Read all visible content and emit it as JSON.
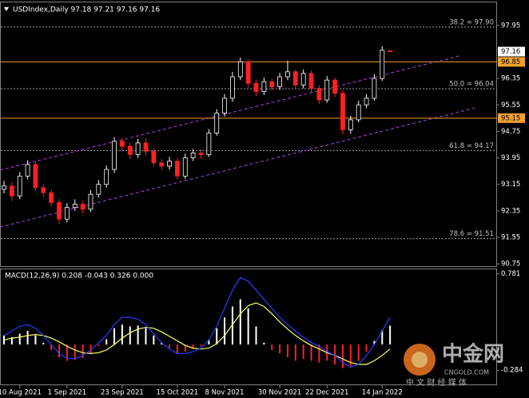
{
  "chart_data": [
    {
      "type": "candlestick",
      "title": "USDIndex,Daily 97.18 97.21 97.16 97.16",
      "categories": [
        null,
        null,
        "10 Aug 2021",
        null,
        null,
        null,
        null,
        null,
        "1 Sep 2021",
        null,
        null,
        null,
        null,
        null,
        null,
        "23 Sep 2021",
        null,
        null,
        null,
        null,
        null,
        null,
        "15 Oct 2021",
        null,
        null,
        null,
        null,
        null,
        "8 Nov 2021",
        null,
        null,
        null,
        null,
        null,
        null,
        "30 Nov 2021",
        null,
        null,
        null,
        null,
        null,
        "22 Dec 2021",
        null,
        null,
        null,
        null,
        null,
        null,
        "14 Jan 2022",
        null
      ],
      "open": [
        93.0,
        93.1,
        92.8,
        93.4,
        93.75,
        93.05,
        92.9,
        92.6,
        92.1,
        92.45,
        92.55,
        92.4,
        92.85,
        93.15,
        93.6,
        94.45,
        94.3,
        94.05,
        94.4,
        94.15,
        93.8,
        93.7,
        93.85,
        93.4,
        93.95,
        94.1,
        94.05,
        94.7,
        95.3,
        95.75,
        96.4,
        96.85,
        96.2,
        95.95,
        96.25,
        96.1,
        96.4,
        96.55,
        96.15,
        96.5,
        96.05,
        95.7,
        96.3,
        95.9,
        94.8,
        95.1,
        95.55,
        95.75,
        96.35,
        97.18
      ],
      "high": [
        93.25,
        93.22,
        93.52,
        93.88,
        93.82,
        93.15,
        93.0,
        92.7,
        92.58,
        92.7,
        92.65,
        92.98,
        93.28,
        93.72,
        94.58,
        94.55,
        94.4,
        94.52,
        94.55,
        94.25,
        93.92,
        93.98,
        93.95,
        94.08,
        94.22,
        94.2,
        94.82,
        95.42,
        95.88,
        96.55,
        96.98,
        96.92,
        96.32,
        96.38,
        96.35,
        96.52,
        96.88,
        96.62,
        96.62,
        96.58,
        96.15,
        96.42,
        96.38,
        96.0,
        95.22,
        95.68,
        95.88,
        96.48,
        97.32,
        97.21
      ],
      "low": [
        92.88,
        92.65,
        92.7,
        93.3,
        92.95,
        92.78,
        92.48,
        91.95,
        92.0,
        92.35,
        92.28,
        92.32,
        92.75,
        93.05,
        93.5,
        94.18,
        93.92,
        93.95,
        94.02,
        93.68,
        93.58,
        93.6,
        93.3,
        93.32,
        93.85,
        93.92,
        93.98,
        94.62,
        95.2,
        95.65,
        96.3,
        96.08,
        95.82,
        95.85,
        95.98,
        96.0,
        96.3,
        96.02,
        96.05,
        95.92,
        95.58,
        95.62,
        95.78,
        94.65,
        94.68,
        95.02,
        95.45,
        95.68,
        96.28,
        97.16
      ],
      "close": [
        93.1,
        92.8,
        93.4,
        93.75,
        93.05,
        92.9,
        92.6,
        92.1,
        92.45,
        92.55,
        92.4,
        92.85,
        93.15,
        93.6,
        94.45,
        94.3,
        94.05,
        94.4,
        94.15,
        93.8,
        93.7,
        93.85,
        93.4,
        93.95,
        94.1,
        94.05,
        94.7,
        95.3,
        95.75,
        96.4,
        96.85,
        96.2,
        95.95,
        96.25,
        96.1,
        96.4,
        96.55,
        96.15,
        96.5,
        96.05,
        95.7,
        96.3,
        95.9,
        94.8,
        95.1,
        95.55,
        95.75,
        96.35,
        97.2,
        97.16
      ],
      "up_color": "#ffffff",
      "down_color": "#ff2020",
      "ylim": [
        90.68,
        98.67
      ],
      "yticks": [
        97.95,
        96.35,
        95.55,
        94.75,
        93.95,
        93.15,
        92.35,
        91.55,
        90.75
      ],
      "levels": [
        {
          "value": 96.85,
          "color": "#f0a030"
        },
        {
          "value": 95.15,
          "color": "#f0a030"
        }
      ],
      "fib_levels": [
        {
          "value": 97.9,
          "label": "38.2 = 97.90"
        },
        {
          "value": 96.04,
          "label": "50.0 = 96.04"
        },
        {
          "value": 94.17,
          "label": "61.8 = 94.17"
        },
        {
          "value": 91.51,
          "label": "78.6 = 91.51"
        }
      ],
      "channel": [
        {
          "from": [
            -0.5,
            93.58
          ],
          "to": [
            57.8,
            97.03
          ]
        },
        {
          "from": [
            -0.5,
            91.86
          ],
          "to": [
            59.8,
            95.46
          ]
        }
      ],
      "channel_color": "#b040e0"
    },
    {
      "type": "macd",
      "title": "MACD(12,26,9) 0.208 -0.043 0.326 0.000",
      "values": [
        0.1,
        0.08,
        0.12,
        0.15,
        0.1,
        0.02,
        -0.06,
        -0.14,
        -0.18,
        -0.17,
        -0.15,
        -0.1,
        -0.02,
        0.06,
        0.18,
        0.22,
        0.2,
        0.21,
        0.18,
        0.1,
        0.02,
        -0.04,
        -0.1,
        -0.08,
        -0.05,
        -0.02,
        0.05,
        0.18,
        0.3,
        0.42,
        0.5,
        0.4,
        0.2,
        0.02,
        -0.06,
        -0.1,
        -0.14,
        -0.18,
        -0.16,
        -0.18,
        -0.2,
        -0.18,
        -0.22,
        -0.26,
        -0.24,
        -0.18,
        -0.08,
        0.04,
        0.16,
        0.208
      ],
      "series": [
        {
          "color": "#ffff66",
          "values": [
            0.05,
            0.07,
            0.08,
            0.1,
            0.11,
            0.1,
            0.07,
            0.03,
            -0.02,
            -0.06,
            -0.09,
            -0.1,
            -0.09,
            -0.06,
            0.0,
            0.07,
            0.13,
            0.17,
            0.19,
            0.18,
            0.14,
            0.09,
            0.04,
            -0.01,
            -0.04,
            -0.05,
            -0.04,
            0.01,
            0.1,
            0.22,
            0.34,
            0.43,
            0.46,
            0.42,
            0.34,
            0.25,
            0.17,
            0.1,
            0.04,
            -0.01,
            -0.05,
            -0.09,
            -0.12,
            -0.16,
            -0.2,
            -0.22,
            -0.22,
            -0.18,
            -0.12,
            -0.05
          ]
        },
        {
          "color": "#2040ff",
          "values": [
            0.1,
            0.15,
            0.2,
            0.22,
            0.18,
            0.1,
            0.0,
            -0.1,
            -0.15,
            -0.16,
            -0.12,
            -0.06,
            0.02,
            0.1,
            0.22,
            0.3,
            0.3,
            0.28,
            0.22,
            0.12,
            0.02,
            -0.05,
            -0.1,
            -0.1,
            -0.08,
            -0.04,
            0.05,
            0.2,
            0.4,
            0.6,
            0.74,
            0.7,
            0.6,
            0.5,
            0.4,
            0.3,
            0.22,
            0.15,
            0.08,
            0.02,
            -0.02,
            -0.08,
            -0.12,
            -0.2,
            -0.25,
            -0.22,
            -0.12,
            0.0,
            0.15,
            0.3
          ]
        }
      ],
      "pos_color": "#ffffff",
      "neg_color": "#ff2020",
      "ylim": [
        -0.45,
        0.84
      ],
      "yticks": [
        0.781,
        -0.284
      ]
    }
  ],
  "watermark": {
    "brand": "中金网",
    "site": "CNGOLD.COM",
    "slogan": "中 文 财 经 媒 体"
  }
}
